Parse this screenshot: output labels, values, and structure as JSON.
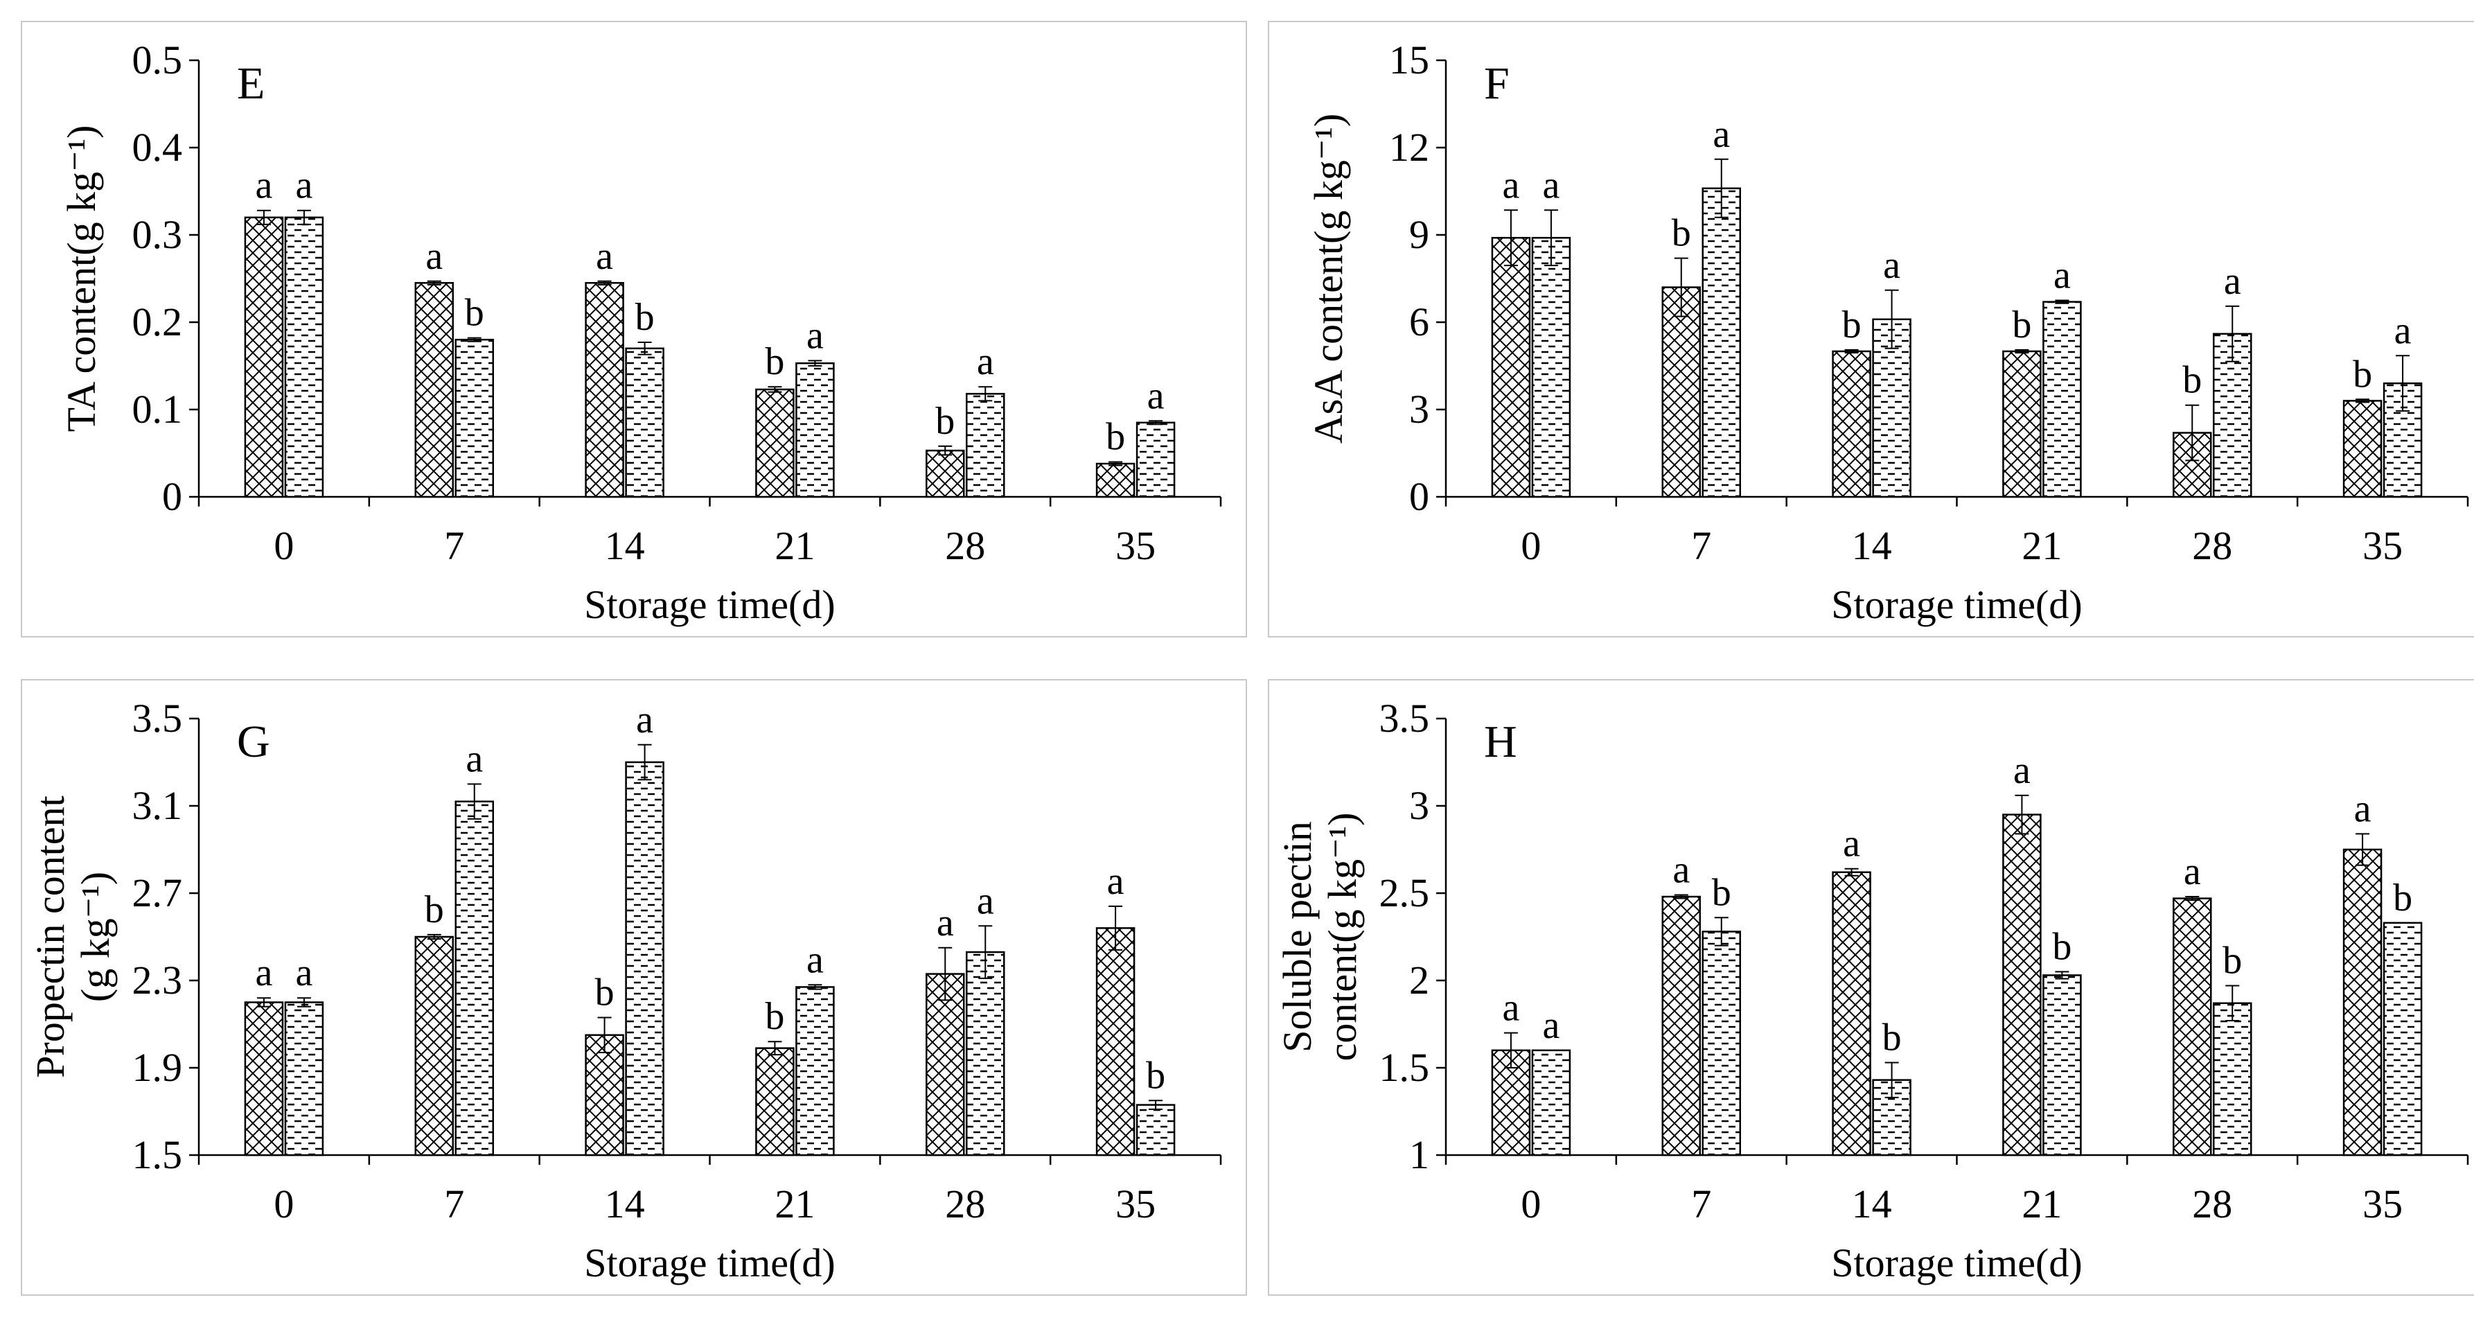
{
  "patterns": {
    "series1": "crosshatch",
    "series2": "dashes"
  },
  "chart_data": [
    {
      "type": "bar",
      "panel_letter": "E",
      "xlabel": "Storage time(d)",
      "ylabel": [
        "TA content(g kg⁻¹)"
      ],
      "categories": [
        "0",
        "7",
        "14",
        "21",
        "28",
        "35"
      ],
      "ylim": [
        0,
        0.5
      ],
      "yticks": [
        "0",
        "0.1",
        "0.2",
        "0.3",
        "0.4",
        "0.5"
      ],
      "series": [
        {
          "values": [
            0.32,
            0.245,
            0.245,
            0.123,
            0.053,
            0.038
          ],
          "errors": [
            0.008,
            0.002,
            0.002,
            0.003,
            0.005,
            0.002
          ],
          "labels": [
            "a",
            "a",
            "a",
            "b",
            "b",
            "b"
          ]
        },
        {
          "values": [
            0.32,
            0.18,
            0.17,
            0.153,
            0.118,
            0.085
          ],
          "errors": [
            0.008,
            0.002,
            0.007,
            0.003,
            0.008,
            0.002
          ],
          "labels": [
            "a",
            "b",
            "b",
            "a",
            "a",
            "a"
          ]
        }
      ]
    },
    {
      "type": "bar",
      "panel_letter": "F",
      "xlabel": "Storage time(d)",
      "ylabel": [
        "AsA content(g kg⁻¹)"
      ],
      "categories": [
        "0",
        "7",
        "14",
        "21",
        "28",
        "35"
      ],
      "ylim": [
        0,
        15
      ],
      "yticks": [
        "0",
        "3",
        "6",
        "9",
        "12",
        "15"
      ],
      "series": [
        {
          "values": [
            8.9,
            7.2,
            5.0,
            5.0,
            2.2,
            3.3
          ],
          "errors": [
            0.95,
            1.0,
            0.05,
            0.05,
            0.95,
            0.05
          ],
          "labels": [
            "a",
            "b",
            "b",
            "b",
            "b",
            "b"
          ]
        },
        {
          "values": [
            8.9,
            10.6,
            6.1,
            6.7,
            5.6,
            3.9
          ],
          "errors": [
            0.95,
            1.0,
            1.0,
            0.05,
            0.95,
            0.95
          ],
          "labels": [
            "a",
            "a",
            "a",
            "a",
            "a",
            "a"
          ]
        }
      ]
    },
    {
      "type": "bar",
      "panel_letter": "G",
      "xlabel": "Storage time(d)",
      "ylabel": [
        "Propectin content",
        "(g kg⁻¹)"
      ],
      "categories": [
        "0",
        "7",
        "14",
        "21",
        "28",
        "35"
      ],
      "ylim": [
        1.5,
        3.5
      ],
      "yticks": [
        "1.5",
        "1.9",
        "2.3",
        "2.7",
        "3.1",
        "3.5"
      ],
      "series": [
        {
          "values": [
            2.2,
            2.5,
            2.05,
            1.99,
            2.33,
            2.54
          ],
          "errors": [
            0.02,
            0.01,
            0.08,
            0.03,
            0.12,
            0.1
          ],
          "labels": [
            "a",
            "b",
            "b",
            "b",
            "a",
            "a"
          ]
        },
        {
          "values": [
            2.2,
            3.12,
            3.3,
            2.27,
            2.43,
            1.73
          ],
          "errors": [
            0.02,
            0.08,
            0.08,
            0.01,
            0.12,
            0.02
          ],
          "labels": [
            "a",
            "a",
            "a",
            "a",
            "a",
            "b"
          ]
        }
      ]
    },
    {
      "type": "bar",
      "panel_letter": "H",
      "xlabel": "Storage time(d)",
      "ylabel": [
        "Soluble pectin",
        "content(g kg⁻¹)"
      ],
      "categories": [
        "0",
        "7",
        "14",
        "21",
        "28",
        "35"
      ],
      "ylim": [
        1,
        3.5
      ],
      "yticks": [
        "1",
        "1.5",
        "2",
        "2.5",
        "3",
        "3.5"
      ],
      "series": [
        {
          "values": [
            1.6,
            2.48,
            2.62,
            2.95,
            2.47,
            2.75
          ],
          "errors": [
            0.1,
            0.01,
            0.02,
            0.11,
            0.01,
            0.09
          ],
          "labels": [
            "a",
            "a",
            "a",
            "a",
            "a",
            "a"
          ]
        },
        {
          "values": [
            1.6,
            2.28,
            1.43,
            2.03,
            1.87,
            2.33
          ],
          "errors": [
            0.0,
            0.08,
            0.1,
            0.02,
            0.1,
            0.0
          ],
          "labels": [
            "a",
            "b",
            "b",
            "b",
            "b",
            "b"
          ]
        }
      ]
    }
  ]
}
